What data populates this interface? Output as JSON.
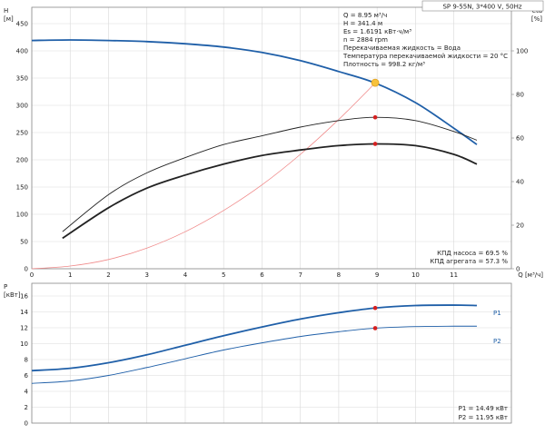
{
  "title": "SP 9-55N, 3*400 V, 50Hz",
  "info": {
    "lines": [
      "Q = 8.95 м³/ч",
      "H = 341.4 м",
      "Es = 1.6191 кВт·ч/м³",
      "n = 2884 rpm",
      "Перекачиваемая жидкость = Вода",
      "Температура перекачиваемой жидкости = 20 °C",
      "Плотность = 998.2 кг/м³"
    ],
    "efficiency_lines": [
      "КПД насоса = 69.5 %",
      "КПД агрегата = 57.3 %"
    ],
    "power_lines": [
      "P1 = 14.49 кВт",
      "P2 = 11.95 кВт"
    ]
  },
  "colors": {
    "head_curve": "#1f5fa8",
    "system_curve": "#f08a8a",
    "eff_curves": "#222222",
    "duty_marker": "#d42020",
    "duty_point_fill": "#f7c23c",
    "grid": "#d9d9d9",
    "frame": "#888888"
  },
  "chart_data": [
    {
      "type": "line",
      "name": "head-efficiency",
      "title": "SP 9-55N, 3*400 V, 50Hz",
      "xlabel": "Q [м³/ч]",
      "ylabel": "H [м]",
      "y2label": "eta [%]",
      "x_ticks": [
        "0",
        "1",
        "2",
        "3",
        "4",
        "5",
        "6",
        "7",
        "8",
        "9",
        "10",
        "11"
      ],
      "y_ticks": [
        "0",
        "50",
        "100",
        "150",
        "200",
        "250",
        "300",
        "350",
        "400",
        "450"
      ],
      "y2_ticks": [
        "0",
        "20",
        "40",
        "60",
        "80",
        "100"
      ],
      "xlim": [
        0,
        12.5
      ],
      "ylim": [
        0,
        480
      ],
      "y2lim": [
        0,
        120
      ],
      "grid": true,
      "series": [
        {
          "key": "head",
          "axis": "left",
          "x": [
            0,
            1,
            2,
            3,
            4,
            5,
            6,
            7,
            8,
            8.95,
            10,
            11,
            11.6
          ],
          "y": [
            419,
            420,
            419,
            417,
            413,
            407,
            397,
            382,
            362,
            341,
            305,
            258,
            228
          ]
        },
        {
          "key": "system",
          "axis": "left",
          "x": [
            0,
            1,
            2,
            3,
            4,
            5,
            6,
            7,
            8,
            8.95
          ],
          "y": [
            0,
            5,
            17,
            38,
            68,
            107,
            154,
            210,
            274,
            341
          ]
        },
        {
          "key": "eff1",
          "axis": "right",
          "x": [
            0.8,
            2,
            3,
            4,
            5,
            6,
            7,
            8,
            8.95,
            10,
            11,
            11.6
          ],
          "y": [
            17,
            34,
            44,
            51,
            57,
            61,
            65,
            68,
            69.5,
            68,
            63,
            59
          ]
        },
        {
          "key": "eff2",
          "axis": "right",
          "x": [
            0.8,
            2,
            3,
            4,
            5,
            6,
            7,
            8,
            8.95,
            10,
            11,
            11.6
          ],
          "y": [
            14,
            28,
            37,
            43,
            48,
            52,
            54.5,
            56.5,
            57.3,
            56.5,
            52.5,
            48
          ]
        }
      ],
      "duty_points": [
        {
          "x": 8.95,
          "y": 341.4,
          "axis": "left"
        },
        {
          "x": 8.95,
          "y": 69.5,
          "axis": "right"
        },
        {
          "x": 8.95,
          "y": 57.3,
          "axis": "right"
        }
      ]
    },
    {
      "type": "line",
      "name": "power",
      "ylabel": "P [кВт]",
      "y_ticks": [
        "0",
        "2",
        "4",
        "6",
        "8",
        "10",
        "12",
        "14",
        "16"
      ],
      "ylim": [
        0,
        17.6
      ],
      "xlim": [
        0,
        12.5
      ],
      "grid": true,
      "series": [
        {
          "name": "P1",
          "key": "p1",
          "x": [
            0,
            1,
            2,
            3,
            4,
            5,
            6,
            7,
            8,
            8.95,
            10,
            11,
            11.6
          ],
          "y": [
            6.6,
            6.9,
            7.6,
            8.6,
            9.8,
            11.0,
            12.1,
            13.1,
            13.9,
            14.49,
            14.8,
            14.85,
            14.8
          ]
        },
        {
          "name": "P2",
          "key": "p2",
          "x": [
            0,
            1,
            2,
            3,
            4,
            5,
            6,
            7,
            8,
            8.95,
            10,
            11,
            11.6
          ],
          "y": [
            5.0,
            5.3,
            6.0,
            7.0,
            8.1,
            9.2,
            10.1,
            10.9,
            11.5,
            11.95,
            12.15,
            12.2,
            12.2
          ]
        }
      ],
      "duty_points": [
        {
          "x": 8.95,
          "y": 14.49
        },
        {
          "x": 8.95,
          "y": 11.95
        }
      ]
    }
  ]
}
